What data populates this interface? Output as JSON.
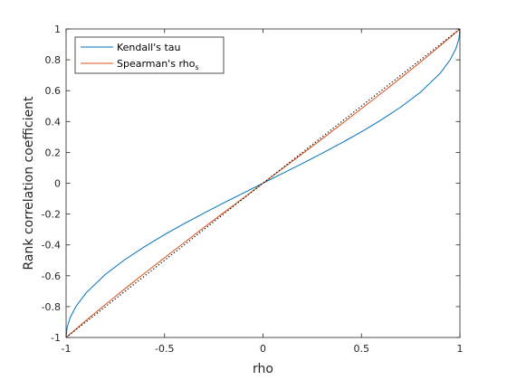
{
  "chart_data": {
    "type": "line",
    "title": "",
    "xlabel": "rho",
    "ylabel": "Rank correlation coefficient",
    "xlim": [
      -1,
      1
    ],
    "ylim": [
      -1,
      1
    ],
    "x_ticks": [
      -1,
      -0.5,
      0,
      0.5,
      1
    ],
    "x_tick_labels": [
      "-1",
      "-0.5",
      "0",
      "0.5",
      "1"
    ],
    "y_ticks": [
      -1,
      -0.8,
      -0.6,
      -0.4,
      -0.2,
      0,
      0.2,
      0.4,
      0.6,
      0.8,
      1
    ],
    "y_tick_labels": [
      "-1",
      "-0.8",
      "-0.6",
      "-0.4",
      "-0.2",
      "0",
      "0.2",
      "0.4",
      "0.6",
      "0.8",
      "1"
    ],
    "grid": false,
    "legend_position": "top-left",
    "series": [
      {
        "name": "Kendall's tau",
        "color": "#0072BD",
        "style": "solid",
        "x": [
          -1,
          -0.995,
          -0.98,
          -0.95,
          -0.9,
          -0.8,
          -0.7,
          -0.6,
          -0.5,
          -0.4,
          -0.3,
          -0.2,
          -0.1,
          0,
          0.1,
          0.2,
          0.3,
          0.4,
          0.5,
          0.6,
          0.7,
          0.8,
          0.9,
          0.95,
          0.98,
          0.995,
          1
        ],
        "y": [
          -1,
          -0.936,
          -0.873,
          -0.799,
          -0.713,
          -0.59,
          -0.494,
          -0.41,
          -0.333,
          -0.262,
          -0.194,
          -0.128,
          -0.064,
          0,
          0.064,
          0.128,
          0.194,
          0.262,
          0.333,
          0.41,
          0.494,
          0.59,
          0.713,
          0.799,
          0.873,
          0.936,
          1
        ]
      },
      {
        "name": "Spearman's rho",
        "name_subscript": "s",
        "color": "#D95319",
        "style": "solid",
        "x": [
          -1,
          -0.9,
          -0.8,
          -0.7,
          -0.6,
          -0.5,
          -0.4,
          -0.3,
          -0.2,
          -0.1,
          0,
          0.1,
          0.2,
          0.3,
          0.4,
          0.5,
          0.6,
          0.7,
          0.8,
          0.9,
          1
        ],
        "y": [
          -1,
          -0.891,
          -0.786,
          -0.683,
          -0.582,
          -0.483,
          -0.385,
          -0.287,
          -0.191,
          -0.096,
          0,
          0.096,
          0.191,
          0.287,
          0.385,
          0.483,
          0.582,
          0.683,
          0.786,
          0.891,
          1
        ]
      },
      {
        "color": "#000000",
        "style": "dotted",
        "x": [
          -1,
          1
        ],
        "y": [
          -1,
          1
        ]
      }
    ]
  }
}
